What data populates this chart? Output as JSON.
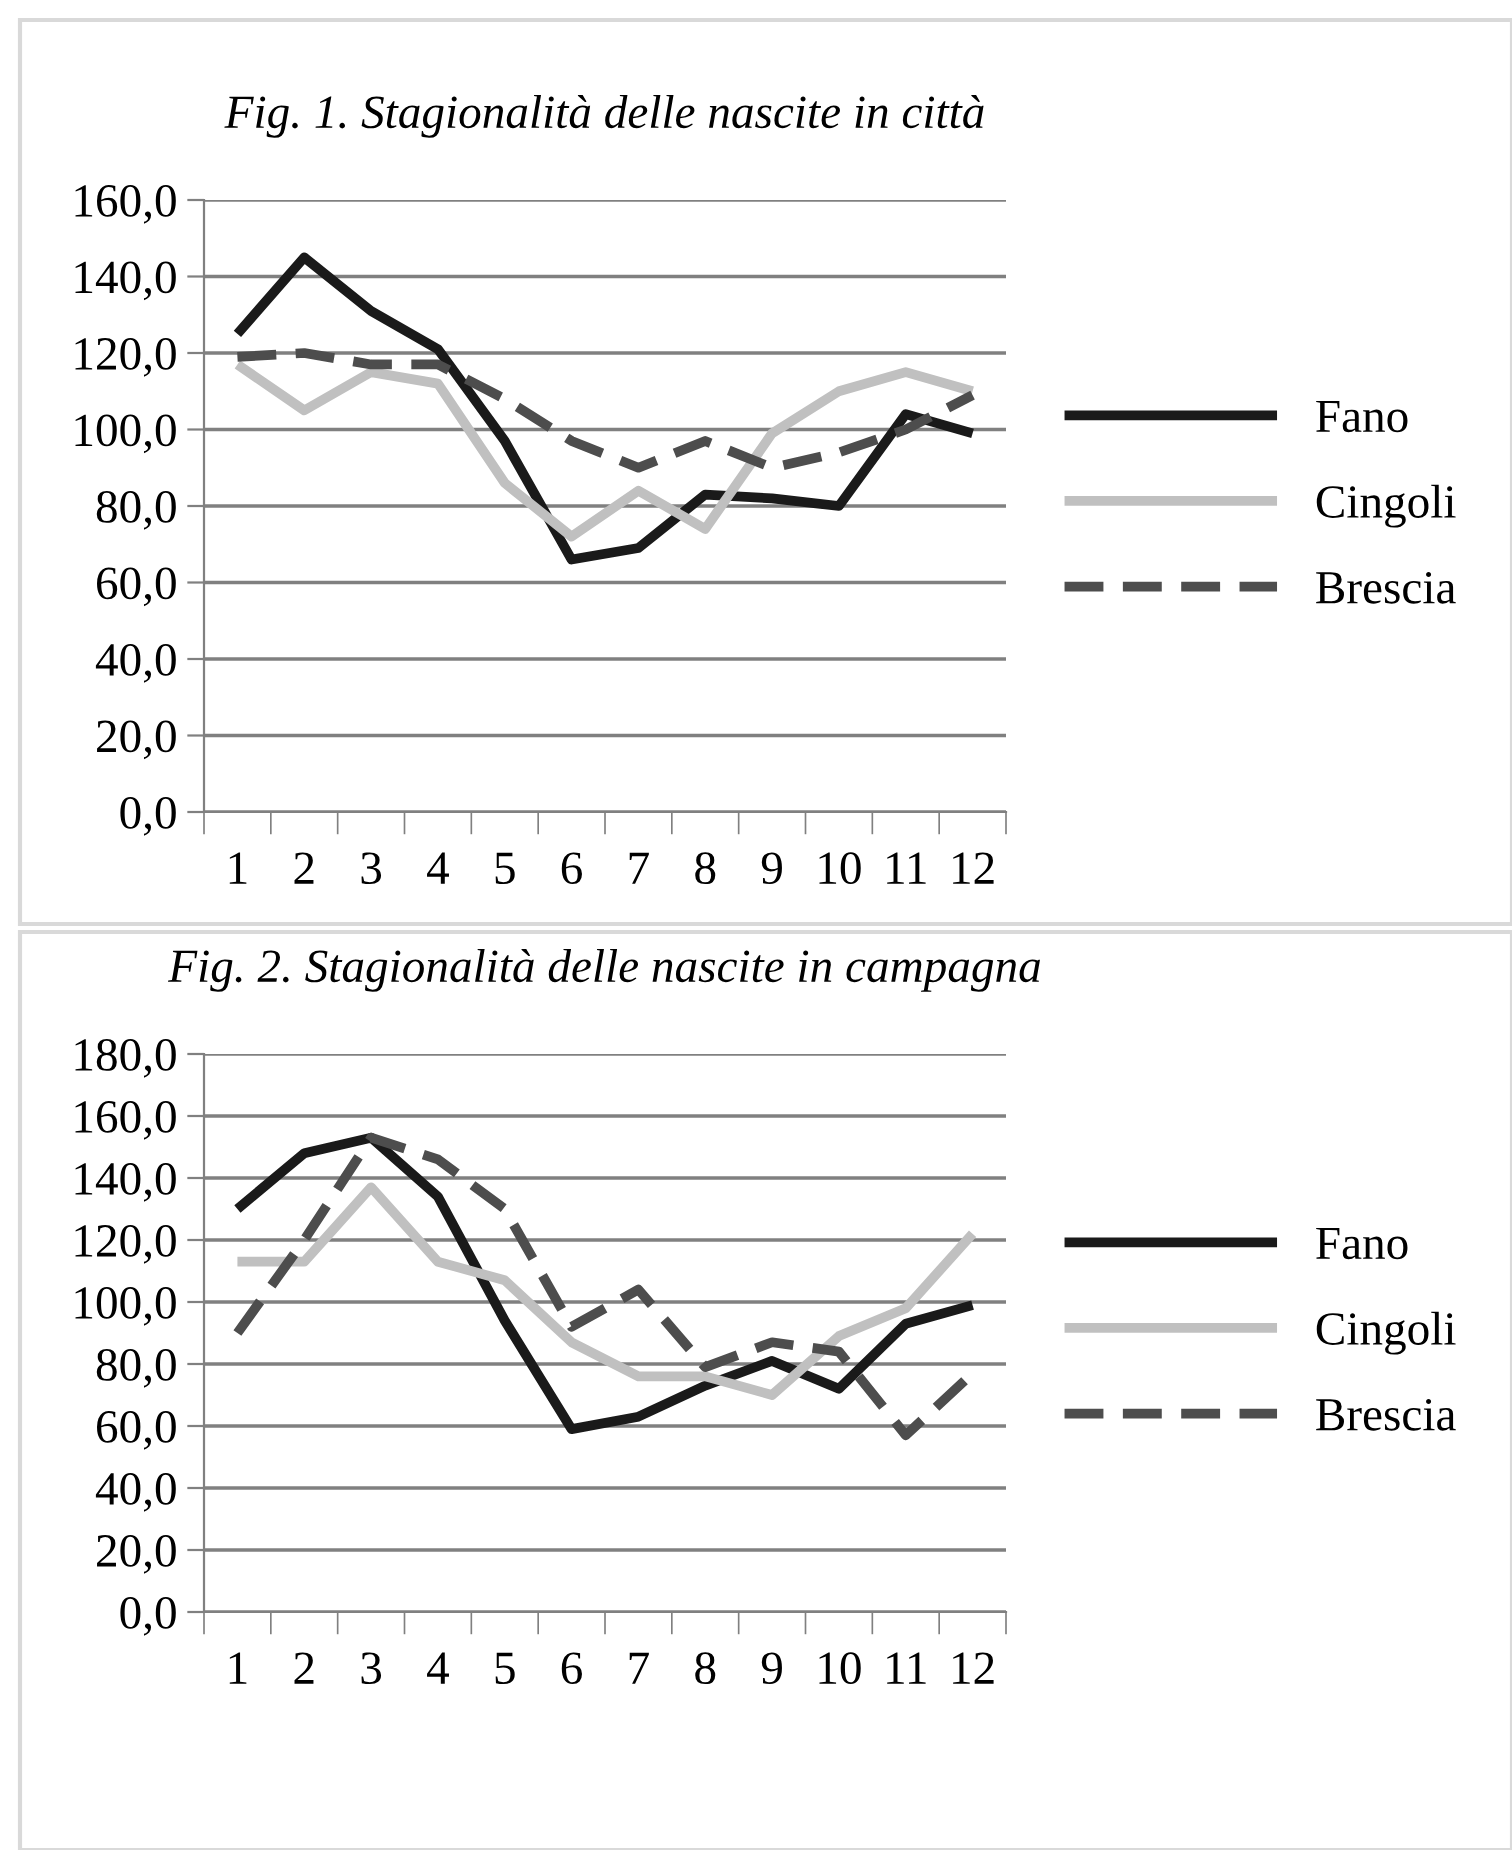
{
  "chart_data": [
    {
      "type": "line",
      "title": "Fig. 1. Stagionalità delle nascite in città",
      "categories": [
        "1",
        "2",
        "3",
        "4",
        "5",
        "6",
        "7",
        "8",
        "9",
        "10",
        "11",
        "12"
      ],
      "series": [
        {
          "name": "Fano",
          "color": "#1a1a1a",
          "line_style": "solid",
          "values": [
            125,
            145,
            131,
            121,
            97,
            66,
            69,
            83,
            82,
            80,
            104,
            99
          ]
        },
        {
          "name": "Cingoli",
          "color": "#c0c0c0",
          "line_style": "solid",
          "values": [
            117,
            105,
            115,
            112,
            86,
            72,
            84,
            74,
            99,
            110,
            115,
            110
          ]
        },
        {
          "name": "Brescia",
          "color": "#4d4d4d",
          "line_style": "dashed",
          "values": [
            119,
            120,
            117,
            117,
            108,
            97,
            90,
            97,
            90,
            94,
            100,
            109
          ]
        }
      ],
      "ylim": [
        0,
        160
      ],
      "yticks": [
        {
          "value": 0,
          "label": "0,0"
        },
        {
          "value": 20,
          "label": "20,0"
        },
        {
          "value": 40,
          "label": "40,0"
        },
        {
          "value": 60,
          "label": "60,0"
        },
        {
          "value": 80,
          "label": "80,0"
        },
        {
          "value": 100,
          "label": "100,0"
        },
        {
          "value": 120,
          "label": "120,0"
        },
        {
          "value": 140,
          "label": "140,0"
        },
        {
          "value": 160,
          "label": "160,0"
        }
      ],
      "grid": "y",
      "legend": "right",
      "marker": "none"
    },
    {
      "type": "line",
      "title": "Fig. 2. Stagionalità delle nascite in campagna",
      "categories": [
        "1",
        "2",
        "3",
        "4",
        "5",
        "6",
        "7",
        "8",
        "9",
        "10",
        "11",
        "12"
      ],
      "series": [
        {
          "name": "Fano",
          "color": "#1a1a1a",
          "line_style": "solid",
          "values": [
            130,
            148,
            153,
            134,
            94,
            59,
            63,
            73,
            81,
            72,
            93,
            99
          ]
        },
        {
          "name": "Cingoli",
          "color": "#c0c0c0",
          "line_style": "solid",
          "values": [
            113,
            113,
            137,
            113,
            107,
            87,
            76,
            76,
            70,
            89,
            98,
            122
          ]
        },
        {
          "name": "Brescia",
          "color": "#4d4d4d",
          "line_style": "dashed",
          "values": [
            90,
            120,
            153,
            146,
            130,
            92,
            104,
            79,
            87,
            84,
            57,
            77
          ]
        }
      ],
      "ylim": [
        0,
        180
      ],
      "yticks": [
        {
          "value": 0,
          "label": "0,0"
        },
        {
          "value": 20,
          "label": "20,0"
        },
        {
          "value": 40,
          "label": "40,0"
        },
        {
          "value": 60,
          "label": "60,0"
        },
        {
          "value": 80,
          "label": "80,0"
        },
        {
          "value": 100,
          "label": "100,0"
        },
        {
          "value": 120,
          "label": "120,0"
        },
        {
          "value": 140,
          "label": "140,0"
        },
        {
          "value": 160,
          "label": "160,0"
        },
        {
          "value": 180,
          "label": "180,0"
        }
      ],
      "grid": "y",
      "legend": "right",
      "marker": "none"
    }
  ]
}
